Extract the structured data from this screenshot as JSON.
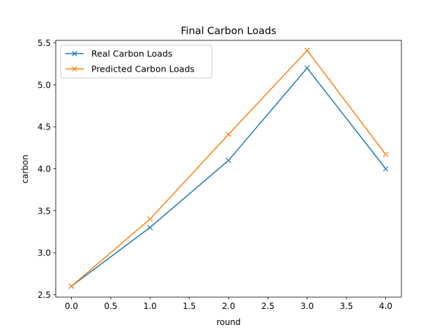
{
  "chart_data": {
    "type": "line",
    "title": "Final Carbon Loads",
    "xlabel": "round",
    "ylabel": "carbon",
    "x": [
      0,
      1,
      2,
      3,
      4
    ],
    "xlim": [
      -0.2,
      4.2
    ],
    "ylim": [
      2.47,
      5.53
    ],
    "xticks": [
      0.0,
      0.5,
      1.0,
      1.5,
      2.0,
      2.5,
      3.0,
      3.5,
      4.0
    ],
    "xtick_labels": [
      "0.0",
      "0.5",
      "1.0",
      "1.5",
      "2.0",
      "2.5",
      "3.0",
      "3.5",
      "4.0"
    ],
    "yticks": [
      2.5,
      3.0,
      3.5,
      4.0,
      4.5,
      5.0,
      5.5
    ],
    "ytick_labels": [
      "2.5",
      "3.0",
      "3.5",
      "4.0",
      "4.5",
      "5.0",
      "5.5"
    ],
    "grid": false,
    "legend_position": "upper-left",
    "series": [
      {
        "name": "Real Carbon Loads",
        "color": "#1f77b4",
        "marker": "x",
        "values": [
          2.6,
          3.3,
          4.1,
          5.2,
          4.0
        ]
      },
      {
        "name": "Predicted Carbon Loads",
        "color": "#ff7f0e",
        "marker": "x",
        "values": [
          2.6,
          3.4,
          4.41,
          5.41,
          4.17
        ]
      }
    ]
  }
}
